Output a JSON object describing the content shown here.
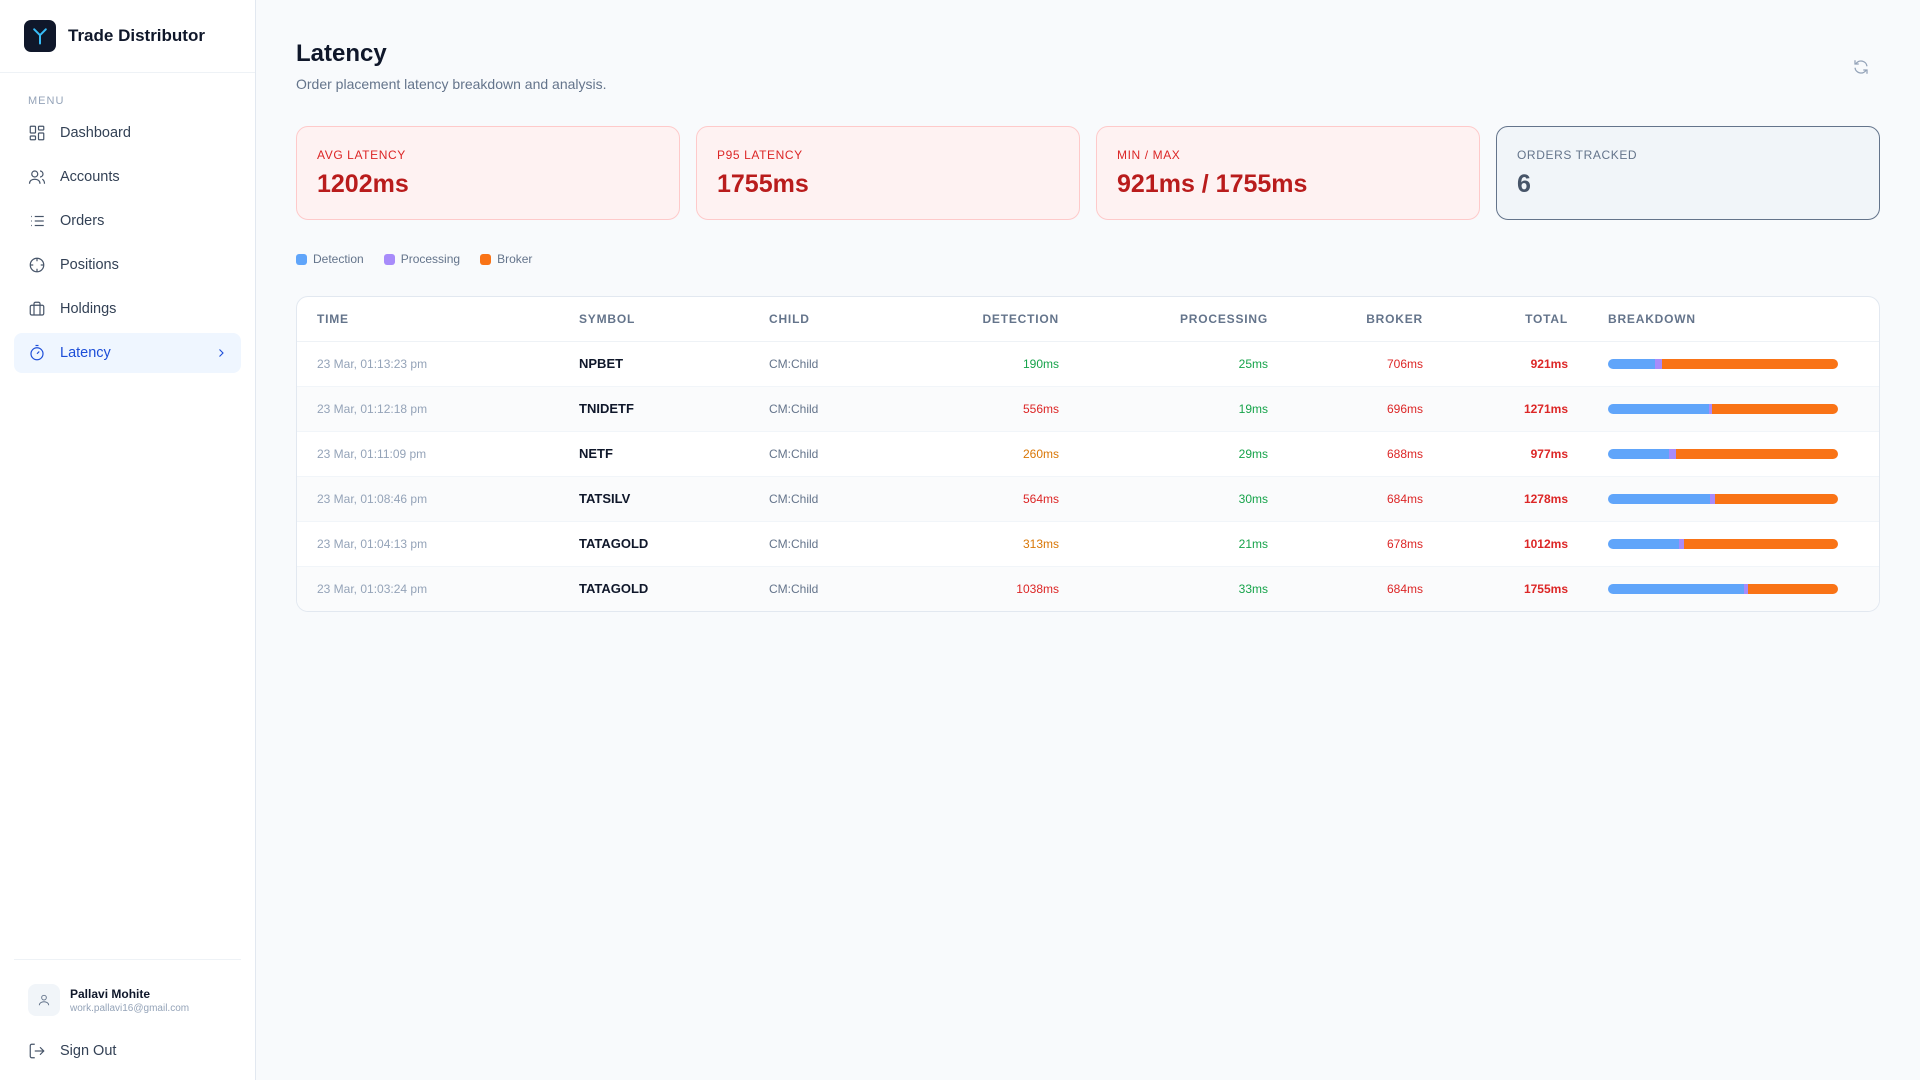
{
  "app": {
    "name": "Trade Distributor"
  },
  "sidebar": {
    "menu_label": "MENU",
    "items": [
      {
        "label": "Dashboard",
        "icon": "dashboard-icon"
      },
      {
        "label": "Accounts",
        "icon": "users-icon"
      },
      {
        "label": "Orders",
        "icon": "list-icon"
      },
      {
        "label": "Positions",
        "icon": "crosshair-icon"
      },
      {
        "label": "Holdings",
        "icon": "briefcase-icon"
      },
      {
        "label": "Latency",
        "icon": "timer-icon",
        "active": true
      }
    ],
    "user": {
      "name": "Pallavi Mohite",
      "email": "work.pallavi16@gmail.com"
    },
    "signout_label": "Sign Out"
  },
  "header": {
    "title": "Latency",
    "subtitle": "Order placement latency breakdown and analysis."
  },
  "stats": [
    {
      "label": "AVG LATENCY",
      "value": "1202ms"
    },
    {
      "label": "P95 LATENCY",
      "value": "1755ms"
    },
    {
      "label": "MIN / MAX",
      "value": "921ms / 1755ms"
    },
    {
      "label": "ORDERS TRACKED",
      "value": "6"
    }
  ],
  "legend": [
    {
      "label": "Detection",
      "color": "#60a5fa"
    },
    {
      "label": "Processing",
      "color": "#a78bfa"
    },
    {
      "label": "Broker",
      "color": "#f97316"
    }
  ],
  "table": {
    "columns": [
      "TIME",
      "SYMBOL",
      "CHILD",
      "DETECTION",
      "PROCESSING",
      "BROKER",
      "TOTAL",
      "BREAKDOWN"
    ],
    "rows": [
      {
        "time": "23 Mar, 01:13:23 pm",
        "symbol": "NPBET",
        "child": "CM:Child",
        "detection": "190ms",
        "processing": "25ms",
        "broker": "706ms",
        "total": "921ms",
        "det_color": "#16a34a",
        "proc_color": "#16a34a",
        "det_ms": 190,
        "proc_ms": 25,
        "broker_ms": 706
      },
      {
        "time": "23 Mar, 01:12:18 pm",
        "symbol": "TNIDETF",
        "child": "CM:Child",
        "detection": "556ms",
        "processing": "19ms",
        "broker": "696ms",
        "total": "1271ms",
        "det_color": "#dc2626",
        "proc_color": "#16a34a",
        "det_ms": 556,
        "proc_ms": 19,
        "broker_ms": 696
      },
      {
        "time": "23 Mar, 01:11:09 pm",
        "symbol": "NETF",
        "child": "CM:Child",
        "detection": "260ms",
        "processing": "29ms",
        "broker": "688ms",
        "total": "977ms",
        "det_color": "#d97706",
        "proc_color": "#16a34a",
        "det_ms": 260,
        "proc_ms": 29,
        "broker_ms": 688
      },
      {
        "time": "23 Mar, 01:08:46 pm",
        "symbol": "TATSILV",
        "child": "CM:Child",
        "detection": "564ms",
        "processing": "30ms",
        "broker": "684ms",
        "total": "1278ms",
        "det_color": "#dc2626",
        "proc_color": "#16a34a",
        "det_ms": 564,
        "proc_ms": 30,
        "broker_ms": 684
      },
      {
        "time": "23 Mar, 01:04:13 pm",
        "symbol": "TATAGOLD",
        "child": "CM:Child",
        "detection": "313ms",
        "processing": "21ms",
        "broker": "678ms",
        "total": "1012ms",
        "det_color": "#d97706",
        "proc_color": "#16a34a",
        "det_ms": 313,
        "proc_ms": 21,
        "broker_ms": 678
      },
      {
        "time": "23 Mar, 01:03:24 pm",
        "symbol": "TATAGOLD",
        "child": "CM:Child",
        "detection": "1038ms",
        "processing": "33ms",
        "broker": "684ms",
        "total": "1755ms",
        "det_color": "#dc2626",
        "proc_color": "#16a34a",
        "det_ms": 1038,
        "proc_ms": 33,
        "broker_ms": 684
      }
    ],
    "broker_color": "#dc2626",
    "total_color": "#dc2626"
  }
}
